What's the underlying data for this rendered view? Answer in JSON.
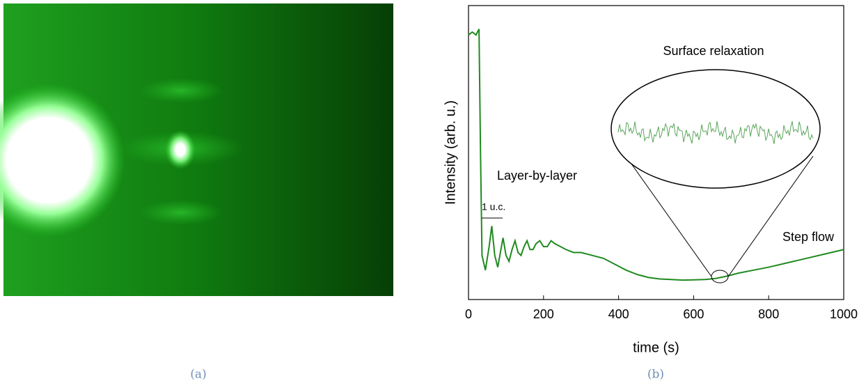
{
  "chart_data": {
    "type": "line",
    "xlabel": "time (s)",
    "ylabel": "Intensity (arb. u.)",
    "xlim": [
      0,
      1000
    ],
    "xticks": [
      0,
      200,
      400,
      600,
      800,
      1000
    ],
    "ylim": [
      0,
      1
    ],
    "annotations": [
      "Surface relaxation",
      "Layer-by-layer",
      "1 u.c.",
      "Step flow"
    ],
    "series": [
      {
        "color": "#1f8a1f",
        "x": [
          0,
          10,
          20,
          28,
          32,
          36,
          45,
          55,
          62,
          70,
          78,
          85,
          92,
          100,
          108,
          116,
          124,
          132,
          140,
          148,
          156,
          164,
          172,
          180,
          190,
          200,
          210,
          220,
          230,
          245,
          260,
          280,
          300,
          330,
          360,
          390,
          420,
          450,
          480,
          510,
          540,
          570,
          600,
          630,
          660,
          690,
          720,
          760,
          800,
          850,
          900,
          950,
          1000
        ],
        "values": [
          0.9,
          0.91,
          0.9,
          0.92,
          0.5,
          0.15,
          0.1,
          0.18,
          0.25,
          0.15,
          0.11,
          0.16,
          0.21,
          0.15,
          0.13,
          0.17,
          0.2,
          0.16,
          0.15,
          0.18,
          0.2,
          0.17,
          0.17,
          0.19,
          0.2,
          0.18,
          0.18,
          0.2,
          0.19,
          0.18,
          0.17,
          0.16,
          0.16,
          0.15,
          0.14,
          0.12,
          0.1,
          0.085,
          0.075,
          0.07,
          0.068,
          0.066,
          0.067,
          0.068,
          0.072,
          0.08,
          0.09,
          0.1,
          0.11,
          0.125,
          0.14,
          0.155,
          0.17
        ]
      }
    ]
  },
  "captions": [
    "(a)",
    "(b)"
  ]
}
